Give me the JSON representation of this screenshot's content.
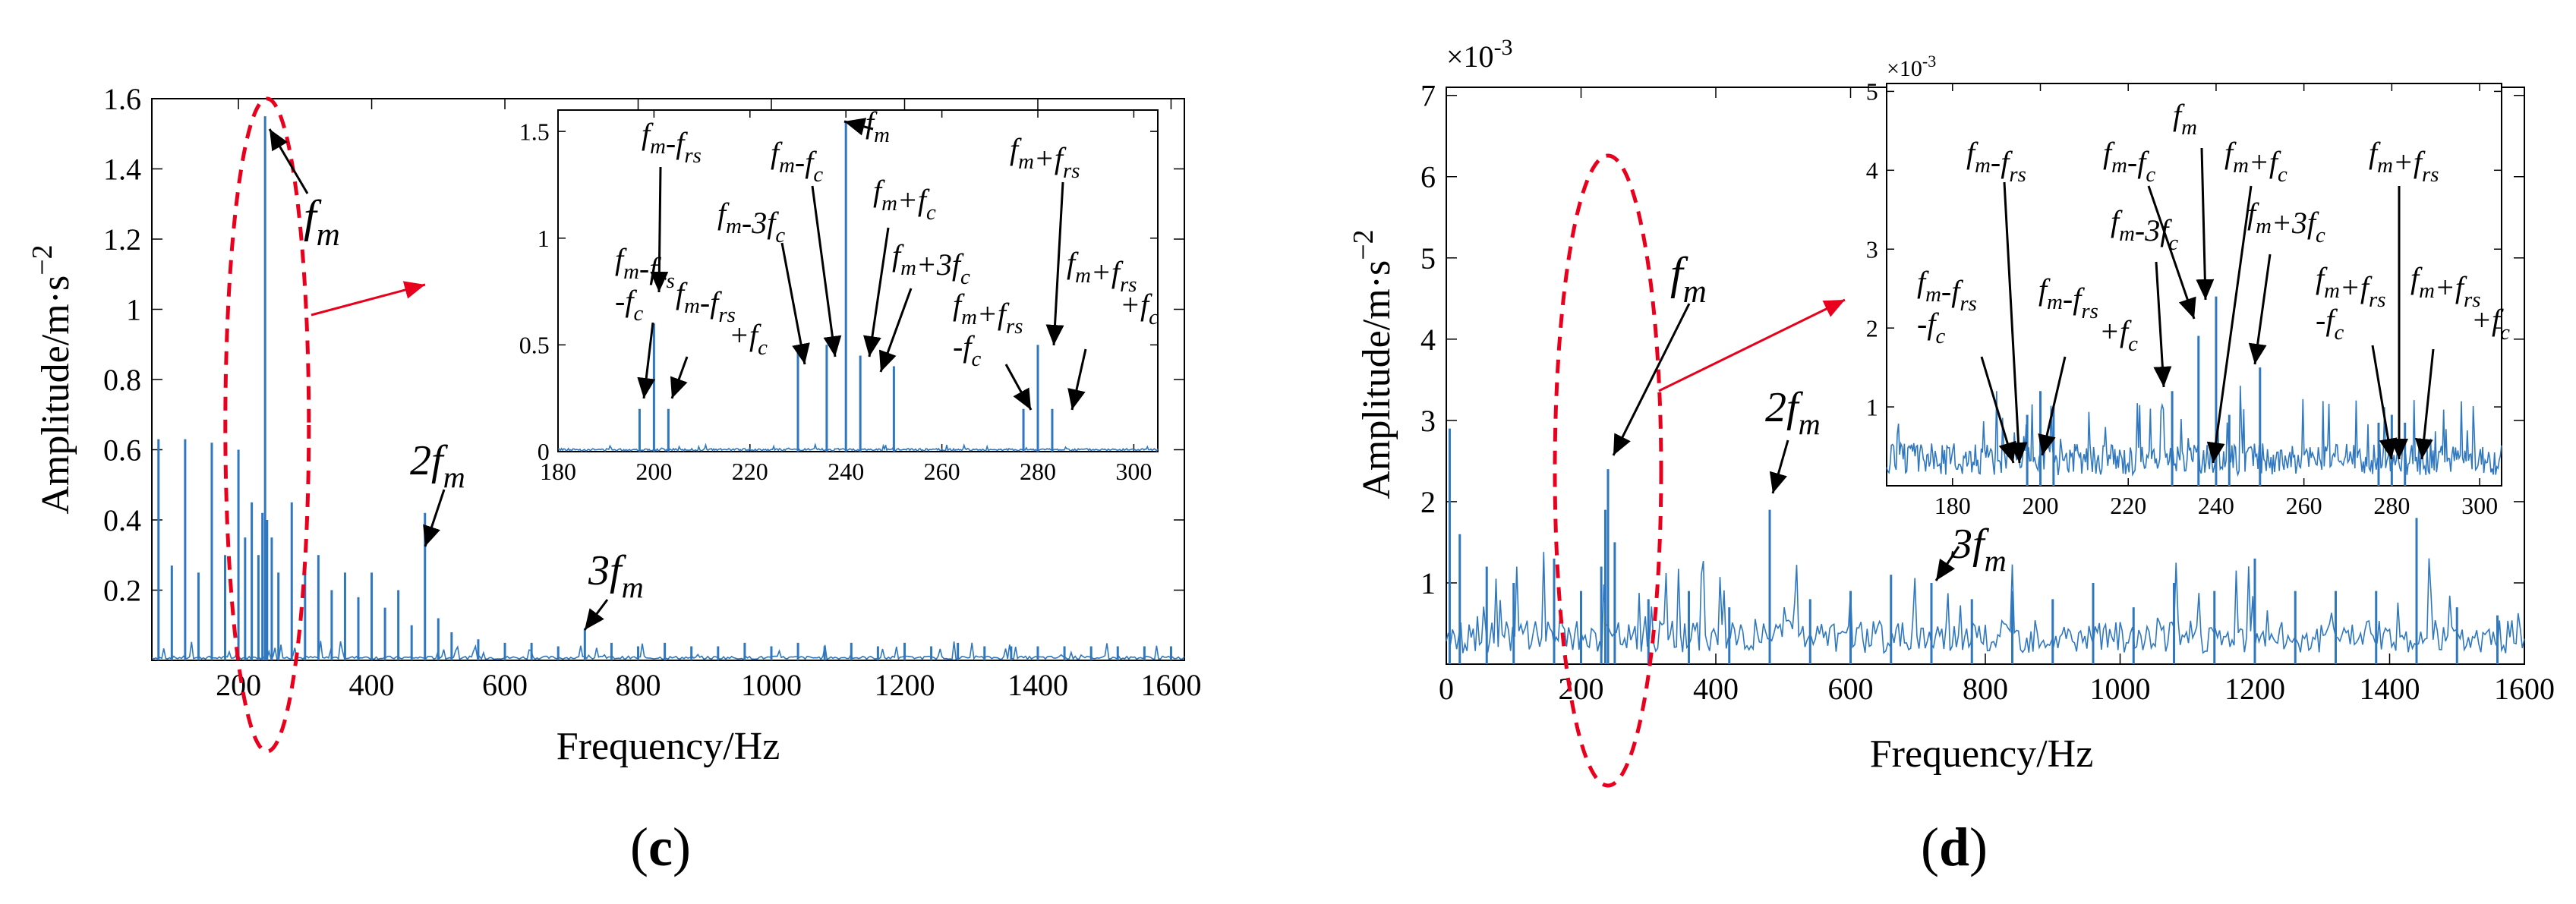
{
  "colors": {
    "signal": "#2f78c0",
    "ellipse": "#e8001c",
    "arrow": "#e8001c",
    "annotation": "#000000"
  },
  "panels": [
    {
      "id": "c",
      "caption": "c",
      "chart_data": {
        "type": "line",
        "title": "",
        "xlabel": "Frequency/Hz",
        "ylabel": "Amplitude/m·s",
        "ylabel_sup": "−2",
        "xlim": [
          70,
          1620
        ],
        "ylim": [
          0,
          1.6
        ],
        "xticks": [
          200,
          400,
          600,
          800,
          1000,
          1200,
          1400,
          1600
        ],
        "yticks": [
          0.2,
          0.4,
          0.6,
          0.8,
          1,
          1.2,
          1.4,
          1.6
        ],
        "ytick_labels": [
          "0.2",
          "0.4",
          "0.6",
          "0.8",
          "1",
          "1.2",
          "1.4",
          "1.6"
        ],
        "series": [
          {
            "name": "spectrum",
            "x": [
              80,
              100,
              120,
              140,
              160,
              180,
              200,
              210,
              220,
              230,
              236,
              240,
              243,
              250,
              260,
              280,
              300,
              320,
              340,
              360,
              380,
              400,
              420,
              440,
              460,
              480,
              500,
              520,
              560,
              600,
              640,
              680,
              720,
              760,
              800,
              840,
              880,
              920,
              960,
              1000,
              1040,
              1080,
              1120,
              1160,
              1200,
              1240,
              1280,
              1320,
              1360,
              1400,
              1440,
              1480,
              1520,
              1560,
              1600
            ],
            "y": [
              0.63,
              0.27,
              0.63,
              0.25,
              0.62,
              0.3,
              0.6,
              0.35,
              0.45,
              0.3,
              0.42,
              1.55,
              0.4,
              0.35,
              0.25,
              0.45,
              0.25,
              0.3,
              0.2,
              0.25,
              0.18,
              0.25,
              0.15,
              0.2,
              0.1,
              0.42,
              0.12,
              0.08,
              0.06,
              0.05,
              0.05,
              0.04,
              0.09,
              0.05,
              0.04,
              0.05,
              0.04,
              0.04,
              0.05,
              0.04,
              0.05,
              0.04,
              0.05,
              0.04,
              0.05,
              0.04,
              0.05,
              0.04,
              0.04,
              0.04,
              0.04,
              0.04,
              0.04,
              0.04,
              0.04
            ]
          }
        ],
        "annotations": [
          {
            "base": "f",
            "sub": "m",
            "pre": ""
          },
          {
            "base": "f",
            "sub": "m",
            "pre": "2"
          },
          {
            "base": "f",
            "sub": "m",
            "pre": "3"
          }
        ],
        "inset": {
          "xlim": [
            180,
            305
          ],
          "ylim": [
            0,
            1.6
          ],
          "xticks": [
            180,
            200,
            220,
            240,
            260,
            280,
            300
          ],
          "yticks": [
            0,
            0.5,
            1,
            1.5
          ],
          "ytick_labels": [
            "0",
            "0.5",
            "1",
            "1.5"
          ],
          "x": [
            197,
            200,
            203,
            230,
            236,
            240,
            243,
            250,
            277,
            280,
            283
          ],
          "y": [
            0.2,
            0.6,
            0.2,
            0.5,
            0.5,
            1.55,
            0.45,
            0.4,
            0.2,
            0.5,
            0.2
          ],
          "labels": [
            "fm-frs -fc",
            "fm-frs",
            "fm-frs +fc",
            "fm-3fc",
            "fm-fc",
            "fm",
            "fm+fc",
            "fm+3fc",
            "fm+frs -fc",
            "fm+frs",
            "fm+frs +fc"
          ]
        }
      }
    },
    {
      "id": "d",
      "caption": "d",
      "chart_data": {
        "type": "line",
        "title": "",
        "xlabel": "Frequency/Hz",
        "ylabel": "Amplitude/m·s",
        "ylabel_sup": "−2",
        "scale_label": "×10",
        "scale_sup": "-3",
        "xlim": [
          0,
          1600
        ],
        "ylim": [
          0,
          7.1
        ],
        "xticks": [
          0,
          200,
          400,
          600,
          800,
          1000,
          1200,
          1400,
          1600
        ],
        "yticks": [
          1,
          2,
          3,
          4,
          5,
          6,
          7
        ],
        "ytick_labels": [
          "1",
          "2",
          "3",
          "4",
          "5",
          "6",
          "7"
        ],
        "series": [
          {
            "name": "spectrum",
            "x": [
              5,
              20,
              60,
              100,
              160,
              200,
              230,
              236,
              240,
              250,
              300,
              360,
              420,
              480,
              540,
              600,
              660,
              720,
              780,
              840,
              900,
              960,
              1020,
              1080,
              1140,
              1200,
              1260,
              1320,
              1380,
              1440,
              1500,
              1560
            ],
            "y": [
              2.9,
              1.6,
              1.2,
              1.0,
              1.3,
              0.9,
              1.2,
              1.9,
              2.4,
              1.5,
              0.8,
              0.9,
              0.7,
              1.9,
              0.8,
              0.9,
              1.1,
              1.0,
              0.8,
              0.9,
              0.8,
              1.0,
              0.7,
              1.0,
              0.9,
              1.3,
              0.9,
              0.9,
              0.9,
              1.8,
              0.7,
              0.6
            ]
          }
        ],
        "annotations": [
          {
            "base": "f",
            "sub": "m",
            "pre": ""
          },
          {
            "base": "f",
            "sub": "m",
            "pre": "2"
          },
          {
            "base": "f",
            "sub": "m",
            "pre": "3"
          }
        ],
        "inset": {
          "scale_label": "×10",
          "scale_sup": "-3",
          "xlim": [
            165,
            305
          ],
          "ylim": [
            0,
            5.1
          ],
          "xticks": [
            180,
            200,
            220,
            240,
            260,
            280,
            300
          ],
          "yticks": [
            1,
            2,
            3,
            4,
            5
          ],
          "ytick_labels": [
            "1",
            "2",
            "3",
            "4",
            "5"
          ],
          "x": [
            197,
            200,
            203,
            230,
            236,
            240,
            243,
            250,
            277,
            280,
            283
          ],
          "y": [
            0.9,
            1.2,
            1.0,
            1.2,
            1.9,
            2.4,
            0.9,
            1.5,
            0.8,
            0.9,
            0.8
          ],
          "labels": [
            "fm-frs -fc",
            "fm-frs",
            "fm-frs +fc",
            "fm-3fc",
            "fm-fc",
            "fm",
            "fm+fc",
            "fm+3fc",
            "fm+frs -fc",
            "fm+frs",
            "fm+frs +fc"
          ]
        }
      }
    }
  ]
}
